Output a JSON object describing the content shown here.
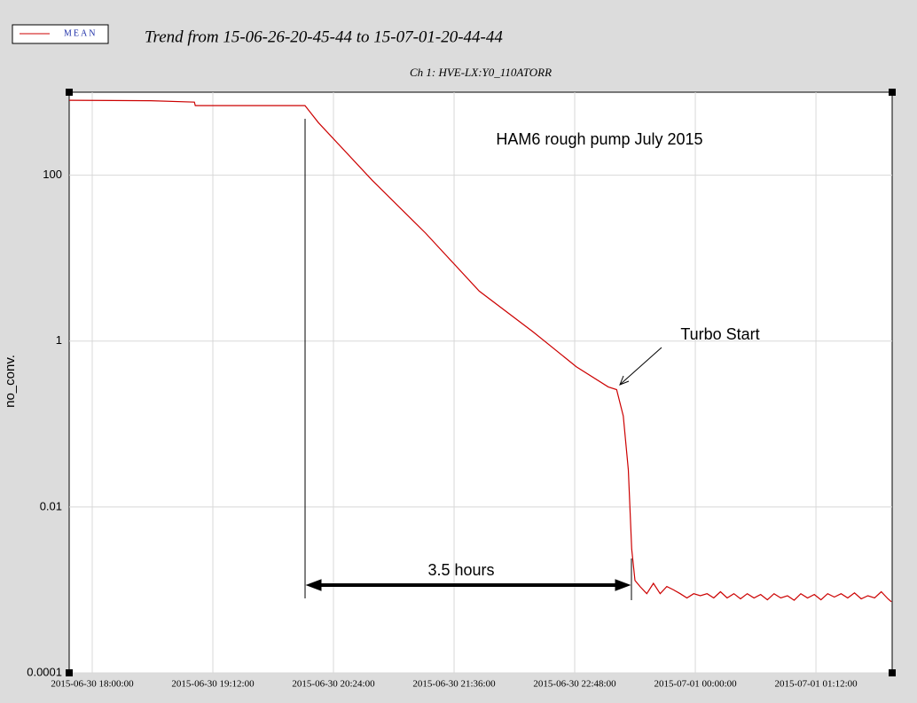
{
  "chart_data": {
    "type": "line",
    "title": "Trend from 15-06-26-20-45-44 to 15-07-01-20-44-44",
    "subtitle": "Ch 1: HVE-LX:Y0_110ATORR",
    "y_label": "no_conv.",
    "annotations": [
      "HAM6 rough pump July 2015",
      "Turbo Start",
      "3.5 hours"
    ],
    "y_scale": "log",
    "grid": true,
    "legend_position": "top-left",
    "ylim": [
      0.0001,
      1000
    ],
    "yticks": [
      0.0001,
      0.01,
      1,
      100
    ],
    "xlim": [
      "2015-06-30 17:46:14",
      "2015-07-01 01:57:30"
    ],
    "xticks": [
      "2015-06-30 18:00:00",
      "2015-06-30 19:12:00",
      "2015-06-30 20:24:00",
      "2015-06-30 21:36:00",
      "2015-06-30 22:48:00",
      "2015-07-01 00:00:00",
      "2015-07-01 01:12:00"
    ],
    "x": [
      "2015-06-30 17:46:14",
      "2015-06-30 18:35:00",
      "2015-06-30 19:01:00",
      "2015-06-30 19:01:30",
      "2015-06-30 20:07:00",
      "2015-06-30 20:15:00",
      "2015-06-30 20:47:00",
      "2015-06-30 21:19:00",
      "2015-06-30 21:51:00",
      "2015-06-30 22:23:00",
      "2015-06-30 22:49:00",
      "2015-06-30 23:08:00",
      "2015-06-30 23:13:00",
      "2015-06-30 23:17:00",
      "2015-06-30 23:20:00",
      "2015-06-30 23:22:00",
      "2015-06-30 23:24:00",
      "2015-06-30 23:27:00",
      "2015-06-30 23:31:00",
      "2015-06-30 23:35:00",
      "2015-06-30 23:39:00",
      "2015-06-30 23:43:00",
      "2015-06-30 23:47:00",
      "2015-06-30 23:51:00",
      "2015-06-30 23:55:00",
      "2015-06-30 23:59:00",
      "2015-07-01 00:03:00",
      "2015-07-01 00:07:00",
      "2015-07-01 00:11:00",
      "2015-07-01 00:15:00",
      "2015-07-01 00:19:00",
      "2015-07-01 00:23:00",
      "2015-07-01 00:27:00",
      "2015-07-01 00:31:00",
      "2015-07-01 00:35:00",
      "2015-07-01 00:39:00",
      "2015-07-01 00:43:00",
      "2015-07-01 00:47:00",
      "2015-07-01 00:51:00",
      "2015-07-01 00:55:00",
      "2015-07-01 00:59:00",
      "2015-07-01 01:03:00",
      "2015-07-01 01:07:00",
      "2015-07-01 01:11:00",
      "2015-07-01 01:15:00",
      "2015-07-01 01:19:00",
      "2015-07-01 01:23:00",
      "2015-07-01 01:27:00",
      "2015-07-01 01:31:00",
      "2015-07-01 01:35:00",
      "2015-07-01 01:39:00",
      "2015-07-01 01:43:00",
      "2015-07-01 01:47:00",
      "2015-07-01 01:51:00",
      "2015-07-01 01:55:00",
      "2015-07-01 01:57:00"
    ],
    "series": [
      {
        "name": "MEAN",
        "color": "#cc0000",
        "values": [
          800,
          790,
          760,
          690,
          690,
          430,
          87,
          20,
          4.0,
          1.3,
          0.49,
          0.28,
          0.26,
          0.125,
          0.028,
          0.0031,
          0.0013,
          0.0011,
          0.0009,
          0.0012,
          0.0009,
          0.0011,
          0.001,
          0.0009,
          0.0008,
          0.0009,
          0.00085,
          0.0009,
          0.0008,
          0.00095,
          0.0008,
          0.0009,
          0.00078,
          0.0009,
          0.0008,
          0.00088,
          0.00076,
          0.0009,
          0.0008,
          0.00085,
          0.00075,
          0.0009,
          0.0008,
          0.00088,
          0.00076,
          0.0009,
          0.00082,
          0.0009,
          0.0008,
          0.00092,
          0.00078,
          0.00085,
          0.0008,
          0.00095,
          0.00078,
          0.00072
        ]
      }
    ]
  }
}
